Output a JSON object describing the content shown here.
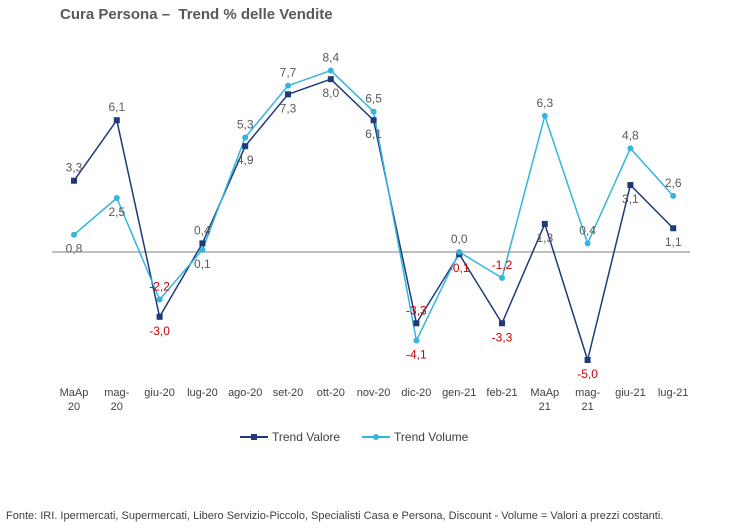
{
  "chart_data": {
    "type": "line",
    "title": "Cura Persona –  Trend % delle Vendite",
    "categories": [
      "MaAp\n20",
      "mag-\n20",
      "giu-20",
      "lug-20",
      "ago-20",
      "set-20",
      "ott-20",
      "nov-20",
      "dic-20",
      "gen-21",
      "feb-21",
      "MaAp\n21",
      "mag-\n21",
      "giu-21",
      "lug-21"
    ],
    "series": [
      {
        "name": "Trend Valore",
        "color": "#1f3a7a",
        "marker": "square",
        "values": [
          3.3,
          6.1,
          -3.0,
          0.4,
          4.9,
          7.3,
          8.0,
          6.1,
          -3.3,
          -0.1,
          -3.3,
          1.3,
          -5.0,
          3.1,
          1.1
        ],
        "labels": [
          "3,3",
          "6,1",
          "-3,0",
          "0,4",
          "4,9",
          "7,3",
          "8,0",
          "6,1",
          "-3,3",
          "-0,1",
          "-3,3",
          "1,3",
          "-5,0",
          "3,1",
          "1,1"
        ]
      },
      {
        "name": "Trend Volume",
        "color": "#33b5e0",
        "marker": "circle",
        "values": [
          0.8,
          2.5,
          -2.2,
          0.1,
          5.3,
          7.7,
          8.4,
          6.5,
          -4.1,
          0.0,
          -1.2,
          6.3,
          0.4,
          4.8,
          2.6
        ],
        "labels": [
          "0,8",
          "2,5",
          "-2,2",
          "0,1",
          "5,3",
          "7,7",
          "8,4",
          "6,5",
          "-4,1",
          "0,0",
          "-1,2",
          "6,3",
          "0,4",
          "4,8",
          "2,6"
        ]
      }
    ],
    "ylim": [
      -6,
      9
    ],
    "grid": false,
    "legend_position": "bottom",
    "negative_label_color": "#cc0000",
    "label_color": "#595959"
  },
  "footnote": "Fonte: IRI. Ipermercati, Supermercati, Libero Servizio-Piccolo,  Specialisti Casa e Persona, Discount -  Volume =  Valori a prezzi  costanti."
}
